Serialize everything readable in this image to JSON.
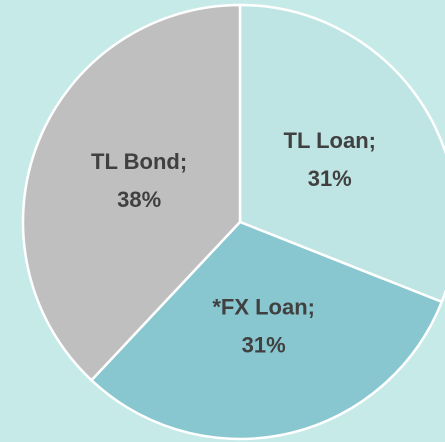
{
  "chart_data": {
    "type": "pie",
    "categories": [
      "TL Loan;",
      "*FX Loan;",
      "TL Bond;"
    ],
    "values": [
      31,
      31,
      38
    ],
    "value_labels": [
      "31%",
      "31%",
      "38%"
    ],
    "colors": [
      "#bfe4e4",
      "#89c7d0",
      "#bfbfbf"
    ]
  }
}
